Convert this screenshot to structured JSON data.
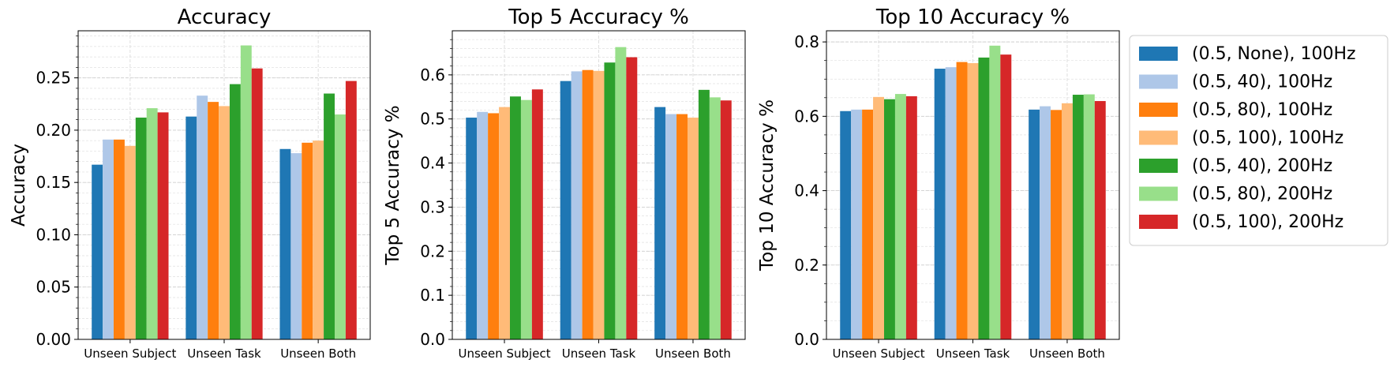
{
  "chart_data": [
    {
      "type": "bar",
      "title": "Accuracy",
      "xlabel": "",
      "ylabel": "Accuracy",
      "ylim": [
        0,
        0.295
      ],
      "yticks": [
        0.0,
        0.05,
        0.1,
        0.15,
        0.2,
        0.25
      ],
      "ytick_labels": [
        "0.00",
        "0.05",
        "0.10",
        "0.15",
        "0.20",
        "0.25"
      ],
      "grid": true,
      "categories": [
        "Unseen Subject",
        "Unseen Task",
        "Unseen Both"
      ],
      "series": [
        {
          "name": "(0.5, None), 100Hz",
          "color": "#1f77b4",
          "values": [
            0.167,
            0.213,
            0.182
          ]
        },
        {
          "name": "(0.5, 40), 100Hz",
          "color": "#aec7e8",
          "values": [
            0.191,
            0.233,
            0.178
          ]
        },
        {
          "name": "(0.5, 80), 100Hz",
          "color": "#ff7f0e",
          "values": [
            0.191,
            0.227,
            0.188
          ]
        },
        {
          "name": "(0.5, 100), 100Hz",
          "color": "#ffbb78",
          "values": [
            0.185,
            0.223,
            0.19
          ]
        },
        {
          "name": "(0.5, 40), 200Hz",
          "color": "#2ca02c",
          "values": [
            0.212,
            0.244,
            0.235
          ]
        },
        {
          "name": "(0.5, 80), 200Hz",
          "color": "#98df8a",
          "values": [
            0.221,
            0.281,
            0.215
          ]
        },
        {
          "name": "(0.5, 100), 200Hz",
          "color": "#d62728",
          "values": [
            0.217,
            0.259,
            0.247
          ]
        }
      ]
    },
    {
      "type": "bar",
      "title": "Top 5 Accuracy %",
      "xlabel": "",
      "ylabel": "Top 5 Accuracy %",
      "ylim": [
        0,
        0.7
      ],
      "yticks": [
        0.0,
        0.1,
        0.2,
        0.3,
        0.4,
        0.5,
        0.6
      ],
      "ytick_labels": [
        "0.0",
        "0.1",
        "0.2",
        "0.3",
        "0.4",
        "0.5",
        "0.6"
      ],
      "grid": true,
      "categories": [
        "Unseen Subject",
        "Unseen Task",
        "Unseen Both"
      ],
      "series": [
        {
          "name": "(0.5, None), 100Hz",
          "color": "#1f77b4",
          "values": [
            0.503,
            0.586,
            0.527
          ]
        },
        {
          "name": "(0.5, 40), 100Hz",
          "color": "#aec7e8",
          "values": [
            0.516,
            0.608,
            0.511
          ]
        },
        {
          "name": "(0.5, 80), 100Hz",
          "color": "#ff7f0e",
          "values": [
            0.513,
            0.611,
            0.511
          ]
        },
        {
          "name": "(0.5, 100), 100Hz",
          "color": "#ffbb78",
          "values": [
            0.527,
            0.609,
            0.503
          ]
        },
        {
          "name": "(0.5, 40), 200Hz",
          "color": "#2ca02c",
          "values": [
            0.551,
            0.628,
            0.566
          ]
        },
        {
          "name": "(0.5, 80), 200Hz",
          "color": "#98df8a",
          "values": [
            0.543,
            0.663,
            0.549
          ]
        },
        {
          "name": "(0.5, 100), 200Hz",
          "color": "#d62728",
          "values": [
            0.567,
            0.64,
            0.542
          ]
        }
      ]
    },
    {
      "type": "bar",
      "title": "Top 10 Accuracy %",
      "xlabel": "",
      "ylabel": "Top 10 Accuracy %",
      "ylim": [
        0,
        0.83
      ],
      "yticks": [
        0.0,
        0.2,
        0.4,
        0.6,
        0.8
      ],
      "ytick_labels": [
        "0.0",
        "0.2",
        "0.4",
        "0.6",
        "0.8"
      ],
      "grid": true,
      "categories": [
        "Unseen Subject",
        "Unseen Task",
        "Unseen Both"
      ],
      "series": [
        {
          "name": "(0.5, None), 100Hz",
          "color": "#1f77b4",
          "values": [
            0.614,
            0.728,
            0.618
          ]
        },
        {
          "name": "(0.5, 40), 100Hz",
          "color": "#aec7e8",
          "values": [
            0.618,
            0.732,
            0.627
          ]
        },
        {
          "name": "(0.5, 80), 100Hz",
          "color": "#ff7f0e",
          "values": [
            0.618,
            0.746,
            0.617
          ]
        },
        {
          "name": "(0.5, 100), 100Hz",
          "color": "#ffbb78",
          "values": [
            0.652,
            0.743,
            0.635
          ]
        },
        {
          "name": "(0.5, 40), 200Hz",
          "color": "#2ca02c",
          "values": [
            0.646,
            0.758,
            0.658
          ]
        },
        {
          "name": "(0.5, 80), 200Hz",
          "color": "#98df8a",
          "values": [
            0.66,
            0.79,
            0.659
          ]
        },
        {
          "name": "(0.5, 100), 200Hz",
          "color": "#d62728",
          "values": [
            0.654,
            0.766,
            0.641
          ]
        }
      ]
    }
  ],
  "legend": {
    "placement": "right",
    "entries": [
      {
        "label": "(0.5, None), 100Hz",
        "color": "#1f77b4"
      },
      {
        "label": "(0.5, 40), 100Hz",
        "color": "#aec7e8"
      },
      {
        "label": "(0.5, 80), 100Hz",
        "color": "#ff7f0e"
      },
      {
        "label": "(0.5, 100), 100Hz",
        "color": "#ffbb78"
      },
      {
        "label": "(0.5, 40), 200Hz",
        "color": "#2ca02c"
      },
      {
        "label": "(0.5, 80), 200Hz",
        "color": "#98df8a"
      },
      {
        "label": "(0.5, 100), 200Hz",
        "color": "#d62728"
      }
    ]
  }
}
